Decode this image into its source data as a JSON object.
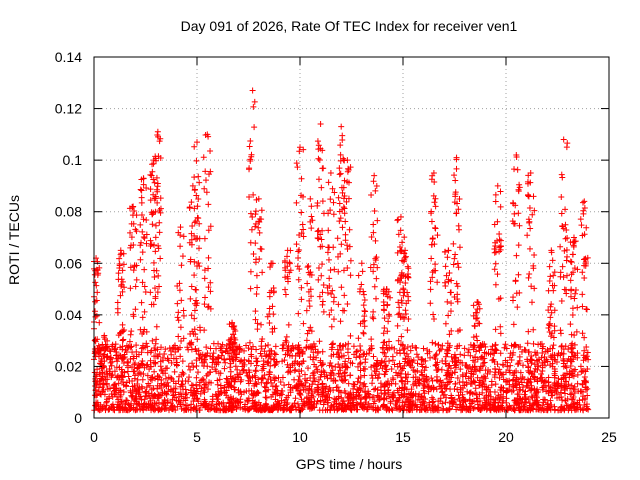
{
  "chart_data": {
    "type": "scatter",
    "title": "Day 091 of 2026, Rate Of TEC Index for receiver ven1",
    "xlabel": "GPS time / hours",
    "ylabel": "ROTI / TECUs",
    "xlim": [
      0,
      25
    ],
    "ylim": [
      0,
      0.14
    ],
    "xticks": [
      "0",
      "5",
      "10",
      "15",
      "20",
      "25"
    ],
    "yticks": [
      "0",
      "0.02",
      "0.04",
      "0.06",
      "0.08",
      "0.1",
      "0.12",
      "0.14"
    ],
    "grid": true,
    "marker": "+",
    "color": "#ff0000",
    "data_x_range": [
      0,
      24
    ],
    "series": [
      {
        "name": "ROTI",
        "description_note": "dense scatter; baseline mostly 0.003-0.025 TECUs across 0-24 h",
        "peaks": [
          {
            "x": 0.1,
            "y": 0.062
          },
          {
            "x": 0.5,
            "y": 0.032
          },
          {
            "x": 1.3,
            "y": 0.065
          },
          {
            "x": 1.9,
            "y": 0.082
          },
          {
            "x": 2.4,
            "y": 0.093
          },
          {
            "x": 2.9,
            "y": 0.1
          },
          {
            "x": 3.1,
            "y": 0.111
          },
          {
            "x": 4.2,
            "y": 0.074
          },
          {
            "x": 4.8,
            "y": 0.09
          },
          {
            "x": 5.0,
            "y": 0.107
          },
          {
            "x": 5.5,
            "y": 0.11
          },
          {
            "x": 6.7,
            "y": 0.037
          },
          {
            "x": 7.7,
            "y": 0.127
          },
          {
            "x": 8.0,
            "y": 0.085
          },
          {
            "x": 8.6,
            "y": 0.06
          },
          {
            "x": 9.4,
            "y": 0.065
          },
          {
            "x": 10.0,
            "y": 0.105
          },
          {
            "x": 10.5,
            "y": 0.085
          },
          {
            "x": 11.0,
            "y": 0.114
          },
          {
            "x": 11.5,
            "y": 0.095
          },
          {
            "x": 12.0,
            "y": 0.113
          },
          {
            "x": 12.3,
            "y": 0.1
          },
          {
            "x": 13.0,
            "y": 0.06
          },
          {
            "x": 13.6,
            "y": 0.094
          },
          {
            "x": 14.2,
            "y": 0.05
          },
          {
            "x": 14.9,
            "y": 0.078
          },
          {
            "x": 15.1,
            "y": 0.065
          },
          {
            "x": 16.5,
            "y": 0.095
          },
          {
            "x": 17.2,
            "y": 0.065
          },
          {
            "x": 17.6,
            "y": 0.101
          },
          {
            "x": 18.6,
            "y": 0.045
          },
          {
            "x": 19.6,
            "y": 0.09
          },
          {
            "x": 20.5,
            "y": 0.102
          },
          {
            "x": 21.2,
            "y": 0.095
          },
          {
            "x": 22.2,
            "y": 0.065
          },
          {
            "x": 22.8,
            "y": 0.108
          },
          {
            "x": 23.3,
            "y": 0.07
          },
          {
            "x": 23.8,
            "y": 0.084
          }
        ]
      }
    ]
  }
}
